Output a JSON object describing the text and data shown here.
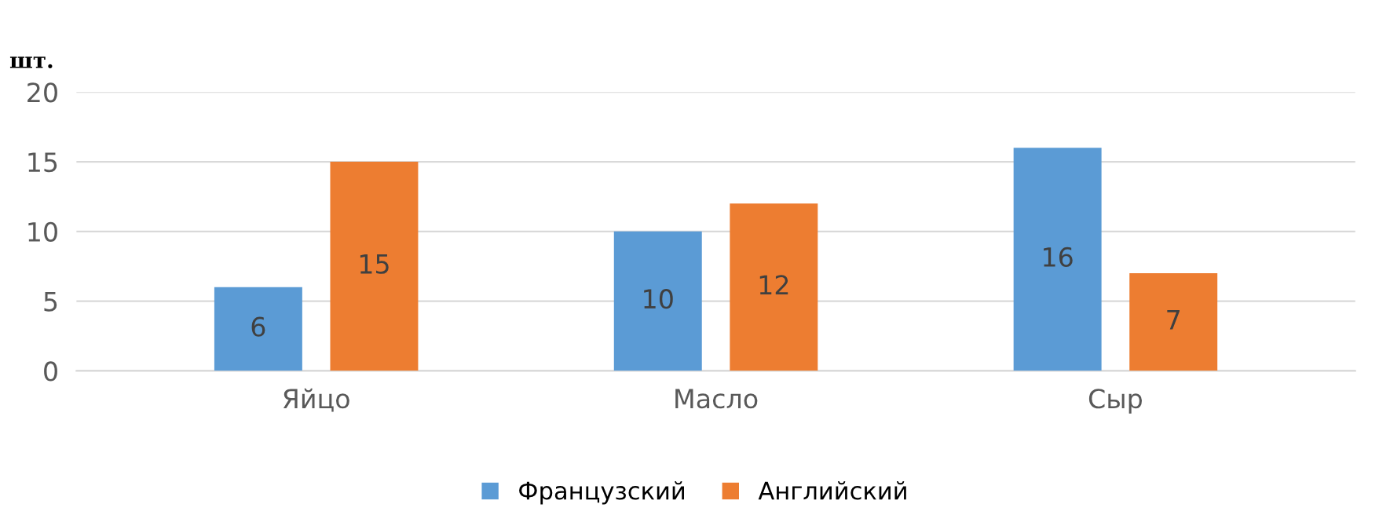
{
  "chart_data": {
    "type": "bar",
    "ylabel": "шт.",
    "categories": [
      "Яйцо",
      "Масло",
      "Сыр"
    ],
    "series": [
      {
        "name": "Французский",
        "color": "#5b9bd5",
        "values": [
          6,
          10,
          16
        ]
      },
      {
        "name": "Английский",
        "color": "#ed7d31",
        "values": [
          15,
          12,
          7
        ]
      }
    ],
    "ylim": [
      0,
      20
    ],
    "yticks": [
      0,
      5,
      10,
      15,
      20
    ],
    "grid": "y",
    "legend": "bottom",
    "data_labels": true
  }
}
